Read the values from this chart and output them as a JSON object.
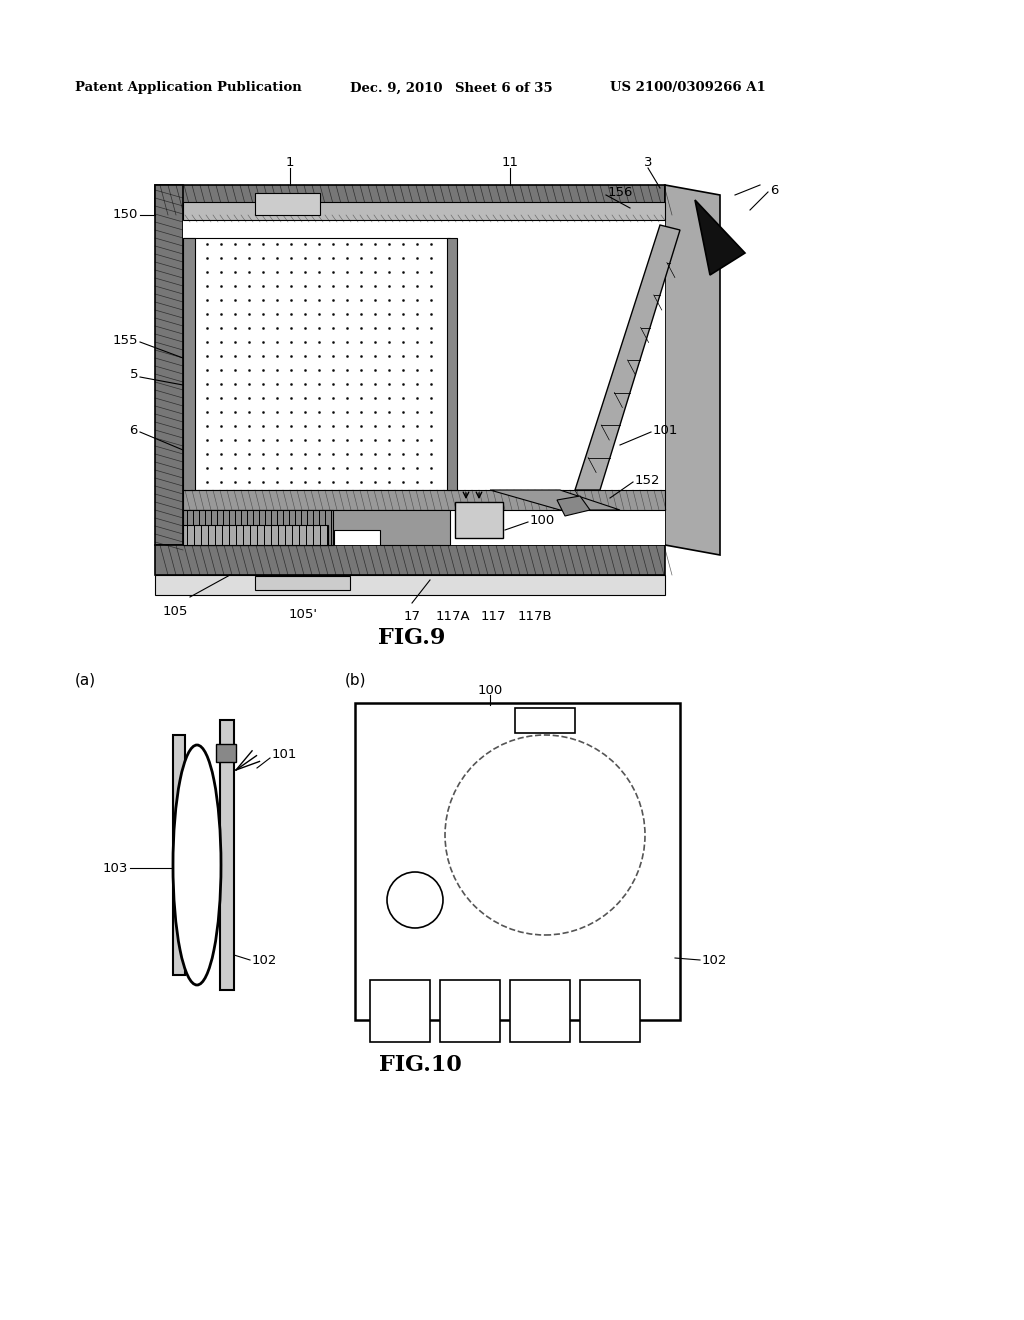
{
  "background_color": "#ffffff",
  "header_text": "Patent Application Publication",
  "header_date": "Dec. 9, 2010",
  "header_sheet": "Sheet 6 of 35",
  "header_patent": "US 2100/0309266 A1",
  "fig9_label": "FIG.9",
  "fig10_label": "FIG.10",
  "label_a": "(a)",
  "label_b": "(b)"
}
